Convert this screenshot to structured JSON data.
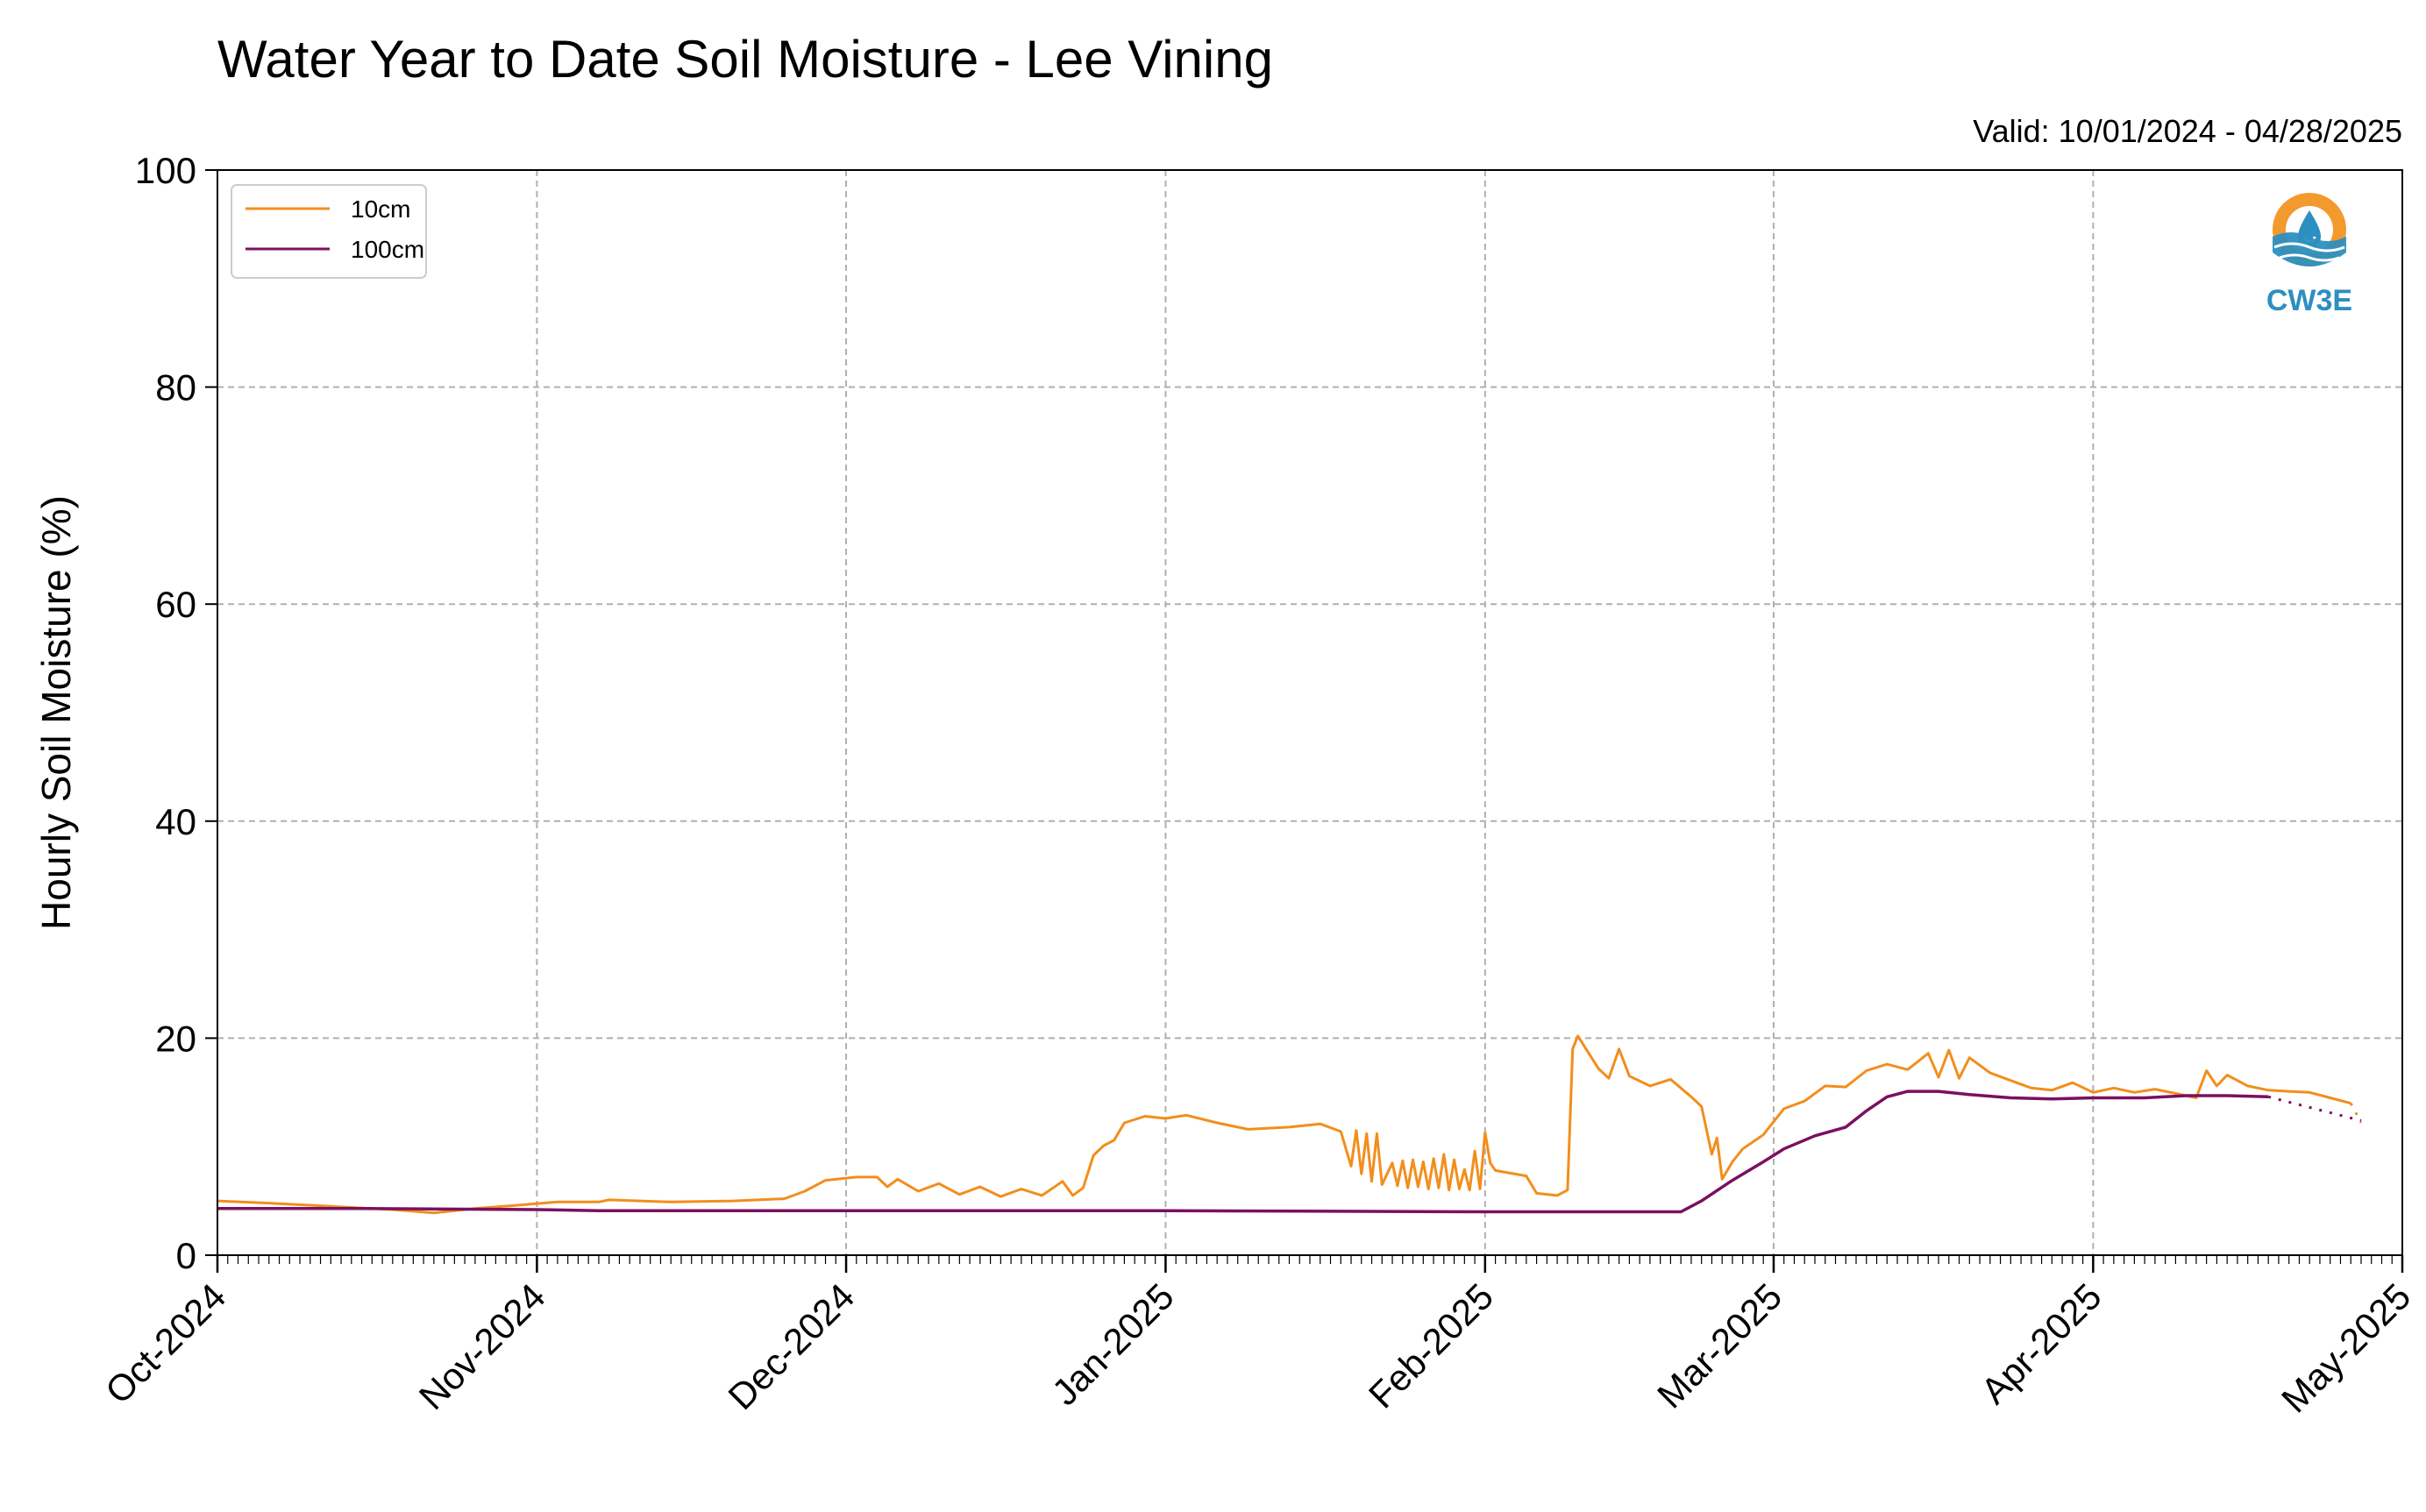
{
  "colors": {
    "series_10cm": "#f28e1c",
    "series_100cm": "#7a1060",
    "grid": "#b0b0b0",
    "logo_orange": "#f29a2e",
    "logo_blue": "#2d8fbf"
  },
  "logo": {
    "icon": "cw3e-water-drop-icon",
    "text": "CW3E"
  },
  "chart_data": {
    "type": "line",
    "title": "Water Year to Date Soil Moisture - Lee Vining",
    "subtitle": "Valid: 10/01/2024 - 04/28/2025",
    "xlabel": "",
    "ylabel": "Hourly Soil Moisture (%)",
    "xlim": [
      "2024-10-01",
      "2025-05-01"
    ],
    "ylim": [
      0,
      100
    ],
    "yticks": [
      0,
      20,
      40,
      60,
      80,
      100
    ],
    "xticks": [
      "Oct-2024",
      "Nov-2024",
      "Dec-2024",
      "Jan-2025",
      "Feb-2025",
      "Mar-2025",
      "Apr-2025",
      "May-2025"
    ],
    "xtick_dates": [
      "2024-10-01",
      "2024-11-01",
      "2024-12-01",
      "2025-01-01",
      "2025-02-01",
      "2025-03-01",
      "2025-04-01",
      "2025-05-01"
    ],
    "grid": true,
    "legend_position": "top-left",
    "series": [
      {
        "name": "10cm",
        "points": [
          [
            "2024-10-01",
            5.0
          ],
          [
            "2024-10-06",
            4.8
          ],
          [
            "2024-10-12",
            4.5
          ],
          [
            "2024-10-18",
            4.2
          ],
          [
            "2024-10-22",
            3.9
          ],
          [
            "2024-10-26",
            4.3
          ],
          [
            "2024-10-30",
            4.6
          ],
          [
            "2024-11-03",
            4.9
          ],
          [
            "2024-11-07",
            4.9
          ],
          [
            "2024-11-08",
            5.1
          ],
          [
            "2024-11-14",
            4.9
          ],
          [
            "2024-11-20",
            5.0
          ],
          [
            "2024-11-25",
            5.2
          ],
          [
            "2024-11-27",
            5.9
          ],
          [
            "2024-11-29",
            6.9
          ],
          [
            "2024-12-02",
            7.2
          ],
          [
            "2024-12-04",
            7.2
          ],
          [
            "2024-12-05",
            6.3
          ],
          [
            "2024-12-06",
            7.0
          ],
          [
            "2024-12-08",
            5.9
          ],
          [
            "2024-12-10",
            6.6
          ],
          [
            "2024-12-12",
            5.6
          ],
          [
            "2024-12-14",
            6.3
          ],
          [
            "2024-12-16",
            5.4
          ],
          [
            "2024-12-18",
            6.1
          ],
          [
            "2024-12-20",
            5.5
          ],
          [
            "2024-12-22",
            6.8
          ],
          [
            "2024-12-23",
            5.5
          ],
          [
            "2024-12-24",
            6.2
          ],
          [
            "2024-12-25",
            9.2
          ],
          [
            "2024-12-26",
            10.1
          ],
          [
            "2024-12-27",
            10.6
          ],
          [
            "2024-12-28",
            12.2
          ],
          [
            "2024-12-30",
            12.8
          ],
          [
            "2025-01-01",
            12.6
          ],
          [
            "2025-01-03",
            12.9
          ],
          [
            "2025-01-06",
            12.2
          ],
          [
            "2025-01-09",
            11.6
          ],
          [
            "2025-01-13",
            11.8
          ],
          [
            "2025-01-16",
            12.1
          ],
          [
            "2025-01-18",
            11.4
          ],
          [
            "2025-01-19",
            8.2
          ],
          [
            "2025-01-19T12",
            11.5
          ],
          [
            "2025-01-20",
            7.5
          ],
          [
            "2025-01-20T12",
            11.2
          ],
          [
            "2025-01-21",
            6.8
          ],
          [
            "2025-01-21T12",
            11.2
          ],
          [
            "2025-01-22",
            6.5
          ],
          [
            "2025-01-23",
            8.5
          ],
          [
            "2025-01-23T12",
            6.4
          ],
          [
            "2025-01-24",
            8.7
          ],
          [
            "2025-01-24T12",
            6.2
          ],
          [
            "2025-01-25",
            8.8
          ],
          [
            "2025-01-25T12",
            6.3
          ],
          [
            "2025-01-26",
            8.6
          ],
          [
            "2025-01-26T12",
            6.1
          ],
          [
            "2025-01-27",
            8.9
          ],
          [
            "2025-01-27T12",
            6.2
          ],
          [
            "2025-01-28",
            9.3
          ],
          [
            "2025-01-28T12",
            6.0
          ],
          [
            "2025-01-29",
            8.8
          ],
          [
            "2025-01-29T12",
            6.1
          ],
          [
            "2025-01-30",
            7.9
          ],
          [
            "2025-01-30T12",
            6.0
          ],
          [
            "2025-01-31",
            9.6
          ],
          [
            "2025-01-31T12",
            6.1
          ],
          [
            "2025-02-01",
            11.3
          ],
          [
            "2025-02-01T12",
            8.5
          ],
          [
            "2025-02-02",
            7.8
          ],
          [
            "2025-02-05",
            7.3
          ],
          [
            "2025-02-06",
            5.7
          ],
          [
            "2025-02-08",
            5.5
          ],
          [
            "2025-02-09",
            6.0
          ],
          [
            "2025-02-09T12",
            19.0
          ],
          [
            "2025-02-10",
            20.2
          ],
          [
            "2025-02-12",
            17.2
          ],
          [
            "2025-02-13",
            16.3
          ],
          [
            "2025-02-14",
            19.0
          ],
          [
            "2025-02-15",
            16.5
          ],
          [
            "2025-02-17",
            15.6
          ],
          [
            "2025-02-19",
            16.2
          ],
          [
            "2025-02-21",
            14.6
          ],
          [
            "2025-02-22",
            13.7
          ],
          [
            "2025-02-23",
            9.3
          ],
          [
            "2025-02-23T12",
            10.8
          ],
          [
            "2025-02-24",
            7.0
          ],
          [
            "2025-02-25",
            8.6
          ],
          [
            "2025-02-26",
            9.8
          ],
          [
            "2025-02-28",
            11.1
          ],
          [
            "2025-03-02",
            13.5
          ],
          [
            "2025-03-04",
            14.2
          ],
          [
            "2025-03-06",
            15.6
          ],
          [
            "2025-03-08",
            15.5
          ],
          [
            "2025-03-10",
            17.0
          ],
          [
            "2025-03-12",
            17.6
          ],
          [
            "2025-03-14",
            17.1
          ],
          [
            "2025-03-16",
            18.6
          ],
          [
            "2025-03-17",
            16.4
          ],
          [
            "2025-03-18",
            18.9
          ],
          [
            "2025-03-19",
            16.3
          ],
          [
            "2025-03-20",
            18.2
          ],
          [
            "2025-03-22",
            16.8
          ],
          [
            "2025-03-24",
            16.1
          ],
          [
            "2025-03-26",
            15.4
          ],
          [
            "2025-03-28",
            15.2
          ],
          [
            "2025-03-30",
            15.9
          ],
          [
            "2025-04-01",
            15.0
          ],
          [
            "2025-04-03",
            15.4
          ],
          [
            "2025-04-05",
            15.0
          ],
          [
            "2025-04-07",
            15.3
          ],
          [
            "2025-04-09",
            14.9
          ],
          [
            "2025-04-11",
            14.5
          ],
          [
            "2025-04-12",
            17.0
          ],
          [
            "2025-04-13",
            15.6
          ],
          [
            "2025-04-14",
            16.6
          ],
          [
            "2025-04-16",
            15.6
          ],
          [
            "2025-04-18",
            15.2
          ],
          [
            "2025-04-20",
            15.1
          ],
          [
            "2025-04-22",
            15.0
          ],
          [
            "2025-04-24",
            14.5
          ],
          [
            "2025-04-26",
            14.0
          ]
        ]
      },
      {
        "name": "100cm",
        "points": [
          [
            "2024-10-01",
            4.3
          ],
          [
            "2024-10-15",
            4.3
          ],
          [
            "2024-11-01",
            4.2
          ],
          [
            "2024-11-07",
            4.1
          ],
          [
            "2024-11-08",
            4.1
          ],
          [
            "2024-12-01",
            4.1
          ],
          [
            "2025-01-01",
            4.1
          ],
          [
            "2025-02-01",
            4.0
          ],
          [
            "2025-02-18",
            4.0
          ],
          [
            "2025-02-20",
            4.0
          ],
          [
            "2025-02-22",
            5.0
          ],
          [
            "2025-02-25",
            6.9
          ],
          [
            "2025-02-28",
            8.6
          ],
          [
            "2025-03-02",
            9.8
          ],
          [
            "2025-03-05",
            11.0
          ],
          [
            "2025-03-08",
            11.8
          ],
          [
            "2025-03-10",
            13.3
          ],
          [
            "2025-03-12",
            14.6
          ],
          [
            "2025-03-14",
            15.1
          ],
          [
            "2025-03-17",
            15.1
          ],
          [
            "2025-03-20",
            14.8
          ],
          [
            "2025-03-24",
            14.5
          ],
          [
            "2025-03-28",
            14.4
          ],
          [
            "2025-04-01",
            14.5
          ],
          [
            "2025-04-06",
            14.5
          ],
          [
            "2025-04-10",
            14.7
          ],
          [
            "2025-04-14",
            14.7
          ],
          [
            "2025-04-18",
            14.6
          ]
        ]
      }
    ]
  }
}
